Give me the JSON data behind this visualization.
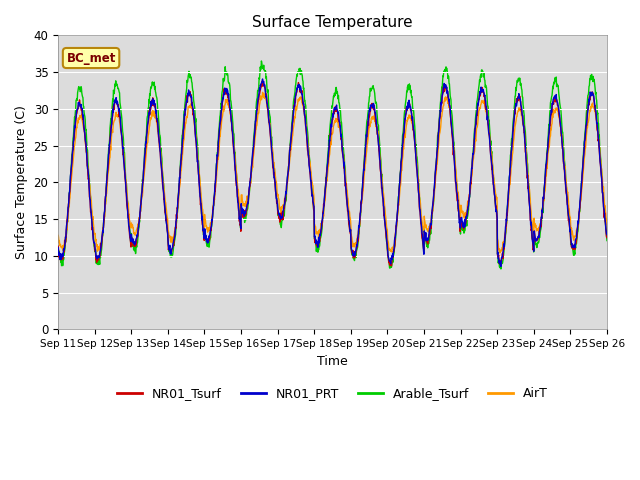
{
  "title": "Surface Temperature",
  "ylabel": "Surface Temperature (C)",
  "xlabel": "Time",
  "ylim": [
    0,
    40
  ],
  "yticks": [
    0,
    5,
    10,
    15,
    20,
    25,
    30,
    35,
    40
  ],
  "annotation_text": "BC_met",
  "legend_labels": [
    "NR01_Tsurf",
    "NR01_PRT",
    "Arable_Tsurf",
    "AirT"
  ],
  "line_colors": [
    "#cc0000",
    "#0000cc",
    "#00cc00",
    "#ff9900"
  ],
  "bg_color": "#dcdcdc",
  "fig_color": "#ffffff",
  "start_day": 11,
  "end_day": 26,
  "dt_hours": 0.25
}
